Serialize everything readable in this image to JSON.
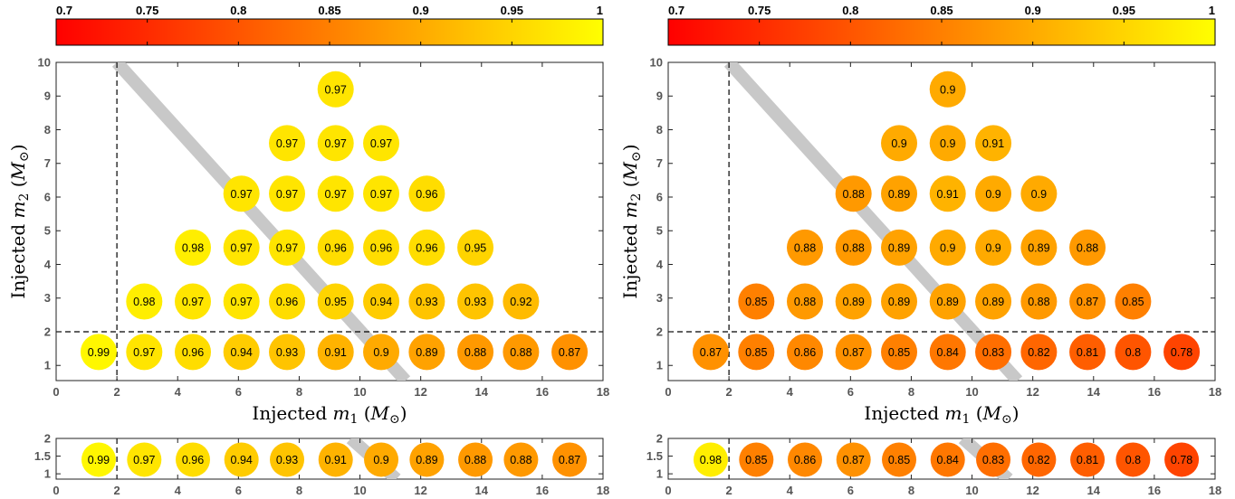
{
  "chart_data": [
    {
      "type": "scatter",
      "colorbar": {
        "min": 0.7,
        "max": 1,
        "ticks": [
          "0.7",
          "0.75",
          "0.8",
          "0.85",
          "0.9",
          "0.95",
          "1"
        ],
        "colors": [
          "#ff0000",
          "#ffff00"
        ],
        "position": "top"
      },
      "xlabel": "Injected m1 (M⊙)",
      "ylabel": "Injected m2 (M⊙)",
      "xlim": [
        0,
        18
      ],
      "ylim": [
        0.55,
        10
      ],
      "xticks": [
        "0",
        "2",
        "4",
        "6",
        "8",
        "10",
        "12",
        "14",
        "16",
        "18"
      ],
      "yticks": [
        "1",
        "2",
        "3",
        "4",
        "5",
        "6",
        "7",
        "8",
        "9",
        "10"
      ],
      "dashed_lines": {
        "x": 2,
        "y": 2
      },
      "diagonal_band": {
        "from": [
          2,
          10
        ],
        "to": [
          11.5,
          0.55
        ]
      },
      "points": [
        {
          "x": 1.4,
          "y": 1.4,
          "value": 0.99,
          "label": "0.99"
        },
        {
          "x": 2.9,
          "y": 1.4,
          "value": 0.97,
          "label": "0.97"
        },
        {
          "x": 4.5,
          "y": 1.4,
          "value": 0.96,
          "label": "0.96"
        },
        {
          "x": 6.1,
          "y": 1.4,
          "value": 0.94,
          "label": "0.94"
        },
        {
          "x": 7.6,
          "y": 1.4,
          "value": 0.93,
          "label": "0.93"
        },
        {
          "x": 9.2,
          "y": 1.4,
          "value": 0.91,
          "label": "0.91"
        },
        {
          "x": 10.7,
          "y": 1.4,
          "value": 0.9,
          "label": "0.9"
        },
        {
          "x": 12.2,
          "y": 1.4,
          "value": 0.89,
          "label": "0.89"
        },
        {
          "x": 13.8,
          "y": 1.4,
          "value": 0.88,
          "label": "0.88"
        },
        {
          "x": 15.3,
          "y": 1.4,
          "value": 0.88,
          "label": "0.88"
        },
        {
          "x": 16.9,
          "y": 1.4,
          "value": 0.87,
          "label": "0.87"
        },
        {
          "x": 2.9,
          "y": 2.9,
          "value": 0.98,
          "label": "0.98"
        },
        {
          "x": 4.5,
          "y": 2.9,
          "value": 0.97,
          "label": "0.97"
        },
        {
          "x": 6.1,
          "y": 2.9,
          "value": 0.97,
          "label": "0.97"
        },
        {
          "x": 7.6,
          "y": 2.9,
          "value": 0.96,
          "label": "0.96"
        },
        {
          "x": 9.2,
          "y": 2.9,
          "value": 0.95,
          "label": "0.95"
        },
        {
          "x": 10.7,
          "y": 2.9,
          "value": 0.94,
          "label": "0.94"
        },
        {
          "x": 12.2,
          "y": 2.9,
          "value": 0.93,
          "label": "0.93"
        },
        {
          "x": 13.8,
          "y": 2.9,
          "value": 0.93,
          "label": "0.93"
        },
        {
          "x": 15.3,
          "y": 2.9,
          "value": 0.92,
          "label": "0.92"
        },
        {
          "x": 4.5,
          "y": 4.5,
          "value": 0.98,
          "label": "0.98"
        },
        {
          "x": 6.1,
          "y": 4.5,
          "value": 0.97,
          "label": "0.97"
        },
        {
          "x": 7.6,
          "y": 4.5,
          "value": 0.97,
          "label": "0.97"
        },
        {
          "x": 9.2,
          "y": 4.5,
          "value": 0.96,
          "label": "0.96"
        },
        {
          "x": 10.7,
          "y": 4.5,
          "value": 0.96,
          "label": "0.96"
        },
        {
          "x": 12.2,
          "y": 4.5,
          "value": 0.96,
          "label": "0.96"
        },
        {
          "x": 13.8,
          "y": 4.5,
          "value": 0.95,
          "label": "0.95"
        },
        {
          "x": 6.1,
          "y": 6.1,
          "value": 0.97,
          "label": "0.97"
        },
        {
          "x": 7.6,
          "y": 6.1,
          "value": 0.97,
          "label": "0.97"
        },
        {
          "x": 9.2,
          "y": 6.1,
          "value": 0.97,
          "label": "0.97"
        },
        {
          "x": 10.7,
          "y": 6.1,
          "value": 0.97,
          "label": "0.97"
        },
        {
          "x": 12.2,
          "y": 6.1,
          "value": 0.96,
          "label": "0.96"
        },
        {
          "x": 7.6,
          "y": 7.6,
          "value": 0.97,
          "label": "0.97"
        },
        {
          "x": 9.2,
          "y": 7.6,
          "value": 0.97,
          "label": "0.97"
        },
        {
          "x": 10.7,
          "y": 7.6,
          "value": 0.97,
          "label": "0.97"
        },
        {
          "x": 9.2,
          "y": 9.2,
          "value": 0.97,
          "label": "0.97"
        }
      ]
    },
    {
      "type": "scatter",
      "colorbar": {
        "min": 0.7,
        "max": 1,
        "ticks": [
          "0.7",
          "0.75",
          "0.8",
          "0.85",
          "0.9",
          "0.95",
          "1"
        ],
        "colors": [
          "#ff0000",
          "#ffff00"
        ],
        "position": "top"
      },
      "xlabel": "Injected m1 (M⊙)",
      "ylabel": "Injected m2 (M⊙)",
      "xlim": [
        0,
        18
      ],
      "ylim": [
        0.55,
        10
      ],
      "xticks": [
        "0",
        "2",
        "4",
        "6",
        "8",
        "10",
        "12",
        "14",
        "16",
        "18"
      ],
      "yticks": [
        "1",
        "2",
        "3",
        "4",
        "5",
        "6",
        "7",
        "8",
        "9",
        "10"
      ],
      "dashed_lines": {
        "x": 2,
        "y": 2
      },
      "diagonal_band": {
        "from": [
          2,
          10
        ],
        "to": [
          11.5,
          0.55
        ]
      },
      "points": [
        {
          "x": 1.4,
          "y": 1.4,
          "value": 0.87,
          "label": "0.87"
        },
        {
          "x": 2.9,
          "y": 1.4,
          "value": 0.85,
          "label": "0.85"
        },
        {
          "x": 4.5,
          "y": 1.4,
          "value": 0.86,
          "label": "0.86"
        },
        {
          "x": 6.1,
          "y": 1.4,
          "value": 0.87,
          "label": "0.87"
        },
        {
          "x": 7.6,
          "y": 1.4,
          "value": 0.85,
          "label": "0.85"
        },
        {
          "x": 9.2,
          "y": 1.4,
          "value": 0.84,
          "label": "0.84"
        },
        {
          "x": 10.7,
          "y": 1.4,
          "value": 0.83,
          "label": "0.83"
        },
        {
          "x": 12.2,
          "y": 1.4,
          "value": 0.82,
          "label": "0.82"
        },
        {
          "x": 13.8,
          "y": 1.4,
          "value": 0.81,
          "label": "0.81"
        },
        {
          "x": 15.3,
          "y": 1.4,
          "value": 0.8,
          "label": "0.8"
        },
        {
          "x": 16.9,
          "y": 1.4,
          "value": 0.78,
          "label": "0.78"
        },
        {
          "x": 2.9,
          "y": 2.9,
          "value": 0.85,
          "label": "0.85"
        },
        {
          "x": 4.5,
          "y": 2.9,
          "value": 0.88,
          "label": "0.88"
        },
        {
          "x": 6.1,
          "y": 2.9,
          "value": 0.89,
          "label": "0.89"
        },
        {
          "x": 7.6,
          "y": 2.9,
          "value": 0.89,
          "label": "0.89"
        },
        {
          "x": 9.2,
          "y": 2.9,
          "value": 0.89,
          "label": "0.89"
        },
        {
          "x": 10.7,
          "y": 2.9,
          "value": 0.89,
          "label": "0.89"
        },
        {
          "x": 12.2,
          "y": 2.9,
          "value": 0.88,
          "label": "0.88"
        },
        {
          "x": 13.8,
          "y": 2.9,
          "value": 0.87,
          "label": "0.87"
        },
        {
          "x": 15.3,
          "y": 2.9,
          "value": 0.85,
          "label": "0.85"
        },
        {
          "x": 4.5,
          "y": 4.5,
          "value": 0.88,
          "label": "0.88"
        },
        {
          "x": 6.1,
          "y": 4.5,
          "value": 0.88,
          "label": "0.88"
        },
        {
          "x": 7.6,
          "y": 4.5,
          "value": 0.89,
          "label": "0.89"
        },
        {
          "x": 9.2,
          "y": 4.5,
          "value": 0.9,
          "label": "0.9"
        },
        {
          "x": 10.7,
          "y": 4.5,
          "value": 0.9,
          "label": "0.9"
        },
        {
          "x": 12.2,
          "y": 4.5,
          "value": 0.89,
          "label": "0.89"
        },
        {
          "x": 13.8,
          "y": 4.5,
          "value": 0.88,
          "label": "0.88"
        },
        {
          "x": 6.1,
          "y": 6.1,
          "value": 0.88,
          "label": "0.88"
        },
        {
          "x": 7.6,
          "y": 6.1,
          "value": 0.89,
          "label": "0.89"
        },
        {
          "x": 9.2,
          "y": 6.1,
          "value": 0.91,
          "label": "0.91"
        },
        {
          "x": 10.7,
          "y": 6.1,
          "value": 0.9,
          "label": "0.9"
        },
        {
          "x": 12.2,
          "y": 6.1,
          "value": 0.9,
          "label": "0.9"
        },
        {
          "x": 7.6,
          "y": 7.6,
          "value": 0.9,
          "label": "0.9"
        },
        {
          "x": 9.2,
          "y": 7.6,
          "value": 0.9,
          "label": "0.9"
        },
        {
          "x": 10.7,
          "y": 7.6,
          "value": 0.91,
          "label": "0.91"
        },
        {
          "x": 9.2,
          "y": 9.2,
          "value": 0.9,
          "label": "0.9"
        }
      ]
    },
    {
      "type": "scatter",
      "xlim": [
        0,
        18
      ],
      "ylim": [
        0.85,
        2
      ],
      "xticks": [
        "0",
        "2",
        "4",
        "6",
        "8",
        "10",
        "12",
        "14",
        "16",
        "18"
      ],
      "yticks": [
        "1",
        "1.5",
        "2"
      ],
      "dashed_lines": {
        "x": 2
      },
      "diagonal_band": {
        "from": [
          9.7,
          2
        ],
        "to": [
          11.2,
          0.85
        ]
      },
      "points": [
        {
          "x": 1.4,
          "y": 1.4,
          "value": 0.99,
          "label": "0.99"
        },
        {
          "x": 2.9,
          "y": 1.4,
          "value": 0.97,
          "label": "0.97"
        },
        {
          "x": 4.5,
          "y": 1.4,
          "value": 0.96,
          "label": "0.96"
        },
        {
          "x": 6.1,
          "y": 1.4,
          "value": 0.94,
          "label": "0.94"
        },
        {
          "x": 7.6,
          "y": 1.4,
          "value": 0.93,
          "label": "0.93"
        },
        {
          "x": 9.2,
          "y": 1.4,
          "value": 0.91,
          "label": "0.91"
        },
        {
          "x": 10.7,
          "y": 1.4,
          "value": 0.9,
          "label": "0.9"
        },
        {
          "x": 12.2,
          "y": 1.4,
          "value": 0.89,
          "label": "0.89"
        },
        {
          "x": 13.8,
          "y": 1.4,
          "value": 0.88,
          "label": "0.88"
        },
        {
          "x": 15.3,
          "y": 1.4,
          "value": 0.88,
          "label": "0.88"
        },
        {
          "x": 16.9,
          "y": 1.4,
          "value": 0.87,
          "label": "0.87"
        }
      ]
    },
    {
      "type": "scatter",
      "xlim": [
        0,
        18
      ],
      "ylim": [
        0.85,
        2
      ],
      "xticks": [
        "0",
        "2",
        "4",
        "6",
        "8",
        "10",
        "12",
        "14",
        "16",
        "18"
      ],
      "yticks": [
        "1",
        "1.5",
        "2"
      ],
      "dashed_lines": {
        "x": 2
      },
      "diagonal_band": {
        "from": [
          9.7,
          2
        ],
        "to": [
          11.2,
          0.85
        ]
      },
      "points": [
        {
          "x": 1.4,
          "y": 1.4,
          "value": 0.98,
          "label": "0.98"
        },
        {
          "x": 2.9,
          "y": 1.4,
          "value": 0.85,
          "label": "0.85"
        },
        {
          "x": 4.5,
          "y": 1.4,
          "value": 0.86,
          "label": "0.86"
        },
        {
          "x": 6.1,
          "y": 1.4,
          "value": 0.87,
          "label": "0.87"
        },
        {
          "x": 7.6,
          "y": 1.4,
          "value": 0.85,
          "label": "0.85"
        },
        {
          "x": 9.2,
          "y": 1.4,
          "value": 0.84,
          "label": "0.84"
        },
        {
          "x": 10.7,
          "y": 1.4,
          "value": 0.83,
          "label": "0.83"
        },
        {
          "x": 12.2,
          "y": 1.4,
          "value": 0.82,
          "label": "0.82"
        },
        {
          "x": 13.8,
          "y": 1.4,
          "value": 0.81,
          "label": "0.81"
        },
        {
          "x": 15.3,
          "y": 1.4,
          "value": 0.8,
          "label": "0.8"
        },
        {
          "x": 16.9,
          "y": 1.4,
          "value": 0.78,
          "label": "0.78"
        }
      ]
    }
  ]
}
